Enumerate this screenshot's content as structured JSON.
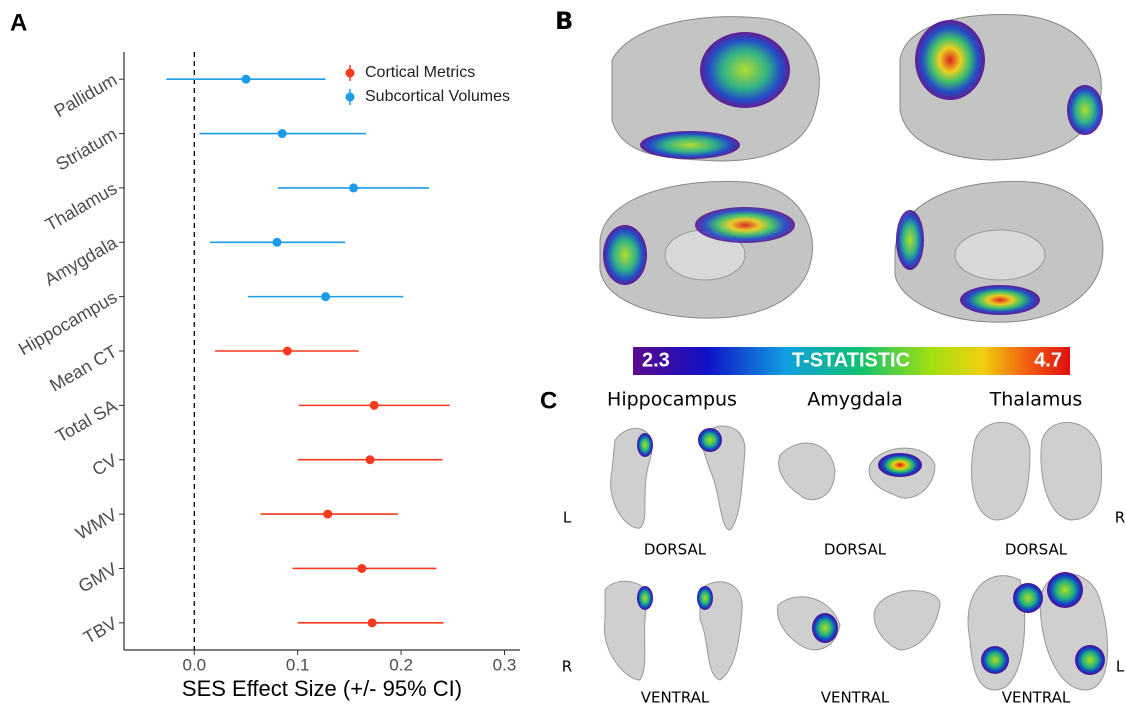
{
  "chart_data": {
    "type": "errorbar",
    "panel_label": "A",
    "x_label": "SES Effect Size (+/- 95% CI)",
    "categories": [
      "Pallidum",
      "Striatum",
      "Thalamus",
      "Amygdala",
      "Hippocampus",
      "Mean CT",
      "Total SA",
      "CV",
      "WMV",
      "GMV",
      "TBV"
    ],
    "series": [
      {
        "name": "Cortical Metrics",
        "color": "#f8391f",
        "values": [
          null,
          null,
          null,
          null,
          null,
          0.09,
          0.174,
          0.17,
          0.129,
          0.162,
          0.172
        ],
        "lower": [
          null,
          null,
          null,
          null,
          null,
          0.02,
          0.101,
          0.1,
          0.064,
          0.095,
          0.1
        ],
        "upper": [
          null,
          null,
          null,
          null,
          null,
          0.159,
          0.247,
          0.24,
          0.197,
          0.234,
          0.241
        ]
      },
      {
        "name": "Subcortical Volumes",
        "color": "#1c9be8",
        "values": [
          0.05,
          0.085,
          0.154,
          0.08,
          0.127,
          null,
          null,
          null,
          null,
          null,
          null
        ],
        "lower": [
          -0.027,
          0.005,
          0.081,
          0.015,
          0.052,
          null,
          null,
          null,
          null,
          null,
          null
        ],
        "upper": [
          0.127,
          0.166,
          0.227,
          0.146,
          0.202,
          null,
          null,
          null,
          null,
          null,
          null
        ]
      }
    ],
    "xlim": [
      -0.068,
      0.315
    ],
    "xticks": [
      {
        "value": 0,
        "label": "0.0"
      },
      0.1,
      0.2,
      0.3
    ],
    "ref_line": 0,
    "legend": "top-right"
  },
  "brain_figure": {
    "panel_b_label": "B",
    "panel_c_label": "C",
    "colorbar": {
      "label": "T-STATISTIC",
      "min": 2.3,
      "max": 4.7
    },
    "structures": [
      "Hippocampus",
      "Amygdala",
      "Thalamus"
    ],
    "views": [
      "DORSAL",
      "VENTRAL"
    ],
    "sides": {
      "dorsal_left": "L",
      "dorsal_right": "R",
      "ventral_left": "R",
      "ventral_right": "L"
    }
  }
}
